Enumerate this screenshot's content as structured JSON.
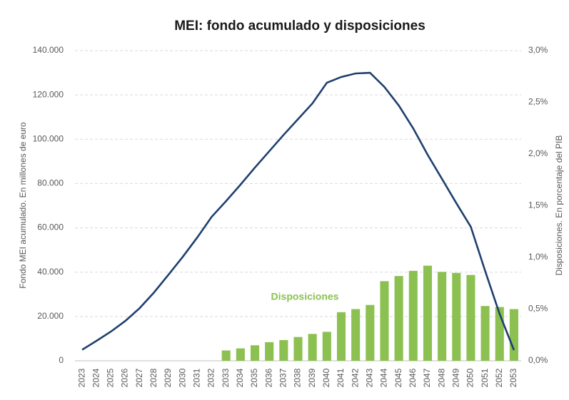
{
  "chart_data": {
    "type": "combo",
    "title": "MEI: fondo acumulado y disposiciones",
    "y_label": "Fondo MEI acumulado. En millones de euro",
    "y2_label": "Disposiciones. En porcentaje del PIB",
    "categories": [
      "2023",
      "2024",
      "2025",
      "2026",
      "2027",
      "2028",
      "2029",
      "2030",
      "2031",
      "2032",
      "2033",
      "2034",
      "2035",
      "2036",
      "2037",
      "2038",
      "2039",
      "2040",
      "2041",
      "2042",
      "2043",
      "2044",
      "2045",
      "2046",
      "2047",
      "2048",
      "2049",
      "2050",
      "2051",
      "2052",
      "2053"
    ],
    "series": [
      {
        "type": "line",
        "color": "#1f3f6e",
        "values": [
          5000,
          9000,
          13200,
          18000,
          23800,
          30900,
          38900,
          47000,
          55700,
          65000,
          72100,
          79500,
          87200,
          94600,
          102000,
          109100,
          116200,
          125500,
          128100,
          129700,
          130000,
          123600,
          115200,
          104900,
          93000,
          82100,
          71100,
          60500,
          40500,
          21200,
          4800
        ]
      },
      {
        "type": "bar",
        "name": "Disposiciones",
        "axis": "y2",
        "color": "#8cc152",
        "values": [
          null,
          null,
          null,
          null,
          null,
          null,
          null,
          null,
          null,
          null,
          0.1,
          0.12,
          0.15,
          0.18,
          0.2,
          0.23,
          0.26,
          0.28,
          0.47,
          0.5,
          0.54,
          0.77,
          0.82,
          0.87,
          0.92,
          0.86,
          0.85,
          0.83,
          0.53,
          0.52,
          0.5
        ]
      }
    ],
    "ylim": [
      0,
      140000
    ],
    "yticks": [
      0,
      {
        "value": 20000,
        "label": "20.000"
      },
      {
        "value": 40000,
        "label": "40.000"
      },
      {
        "value": 60000,
        "label": "60.000"
      },
      {
        "value": 80000,
        "label": "80.000"
      },
      {
        "value": 100000,
        "label": "100.000"
      },
      {
        "value": 120000,
        "label": "120.000"
      },
      {
        "value": 140000,
        "label": "140.000"
      }
    ],
    "y2lim": [
      0,
      3
    ],
    "y2ticks": [
      {
        "value": 0,
        "label": "0,0%"
      },
      {
        "value": 0.5,
        "label": "0,5%"
      },
      {
        "value": 1,
        "label": "1,0%"
      },
      {
        "value": 1.5,
        "label": "1,5%"
      },
      {
        "value": 2,
        "label": "2,0%"
      },
      {
        "value": 2.5,
        "label": "2,5%"
      },
      {
        "value": 3,
        "label": "3,0%"
      }
    ],
    "grid": true
  }
}
